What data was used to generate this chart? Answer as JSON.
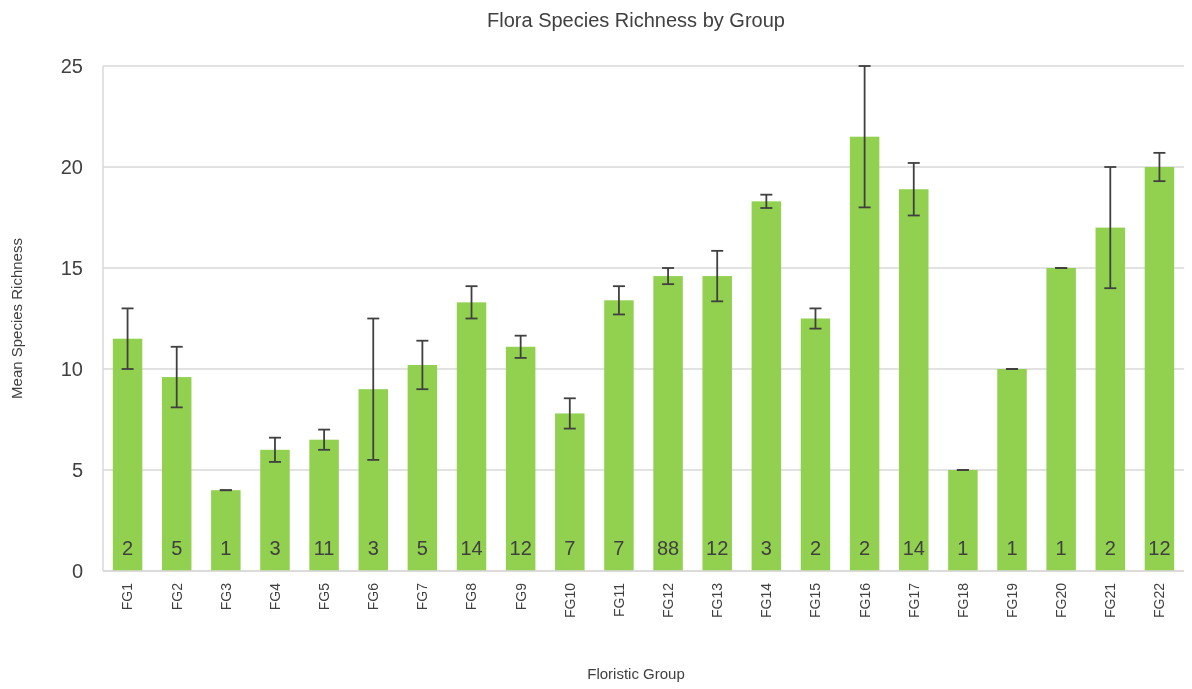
{
  "chart_data": {
    "type": "bar",
    "title": "Flora Species Richness by Group",
    "xlabel": "Floristic Group",
    "ylabel": "Mean Species Richness",
    "categories": [
      "FG1",
      "FG2",
      "FG3",
      "FG4",
      "FG5",
      "FG6",
      "FG7",
      "FG8",
      "FG9",
      "FG10",
      "FG11",
      "FG12",
      "FG13",
      "FG14",
      "FG15",
      "FG16",
      "FG17",
      "FG18",
      "FG19",
      "FG20",
      "FG21",
      "FG22"
    ],
    "values": [
      11.5,
      9.6,
      4,
      6,
      6.5,
      9,
      10.2,
      13.3,
      11.1,
      7.8,
      13.4,
      14.6,
      14.6,
      18.3,
      12.5,
      21.5,
      18.9,
      5,
      10,
      15,
      17,
      20
    ],
    "errors": [
      1.5,
      1.5,
      0,
      0.6,
      0.5,
      3.5,
      1.2,
      0.8,
      0.55,
      0.75,
      0.7,
      0.4,
      1.25,
      0.33,
      0.5,
      3.5,
      1.3,
      0,
      0,
      0,
      3,
      0.7
    ],
    "annotations": [
      "2",
      "5",
      "1",
      "3",
      "11",
      "3",
      "5",
      "14",
      "12",
      "7",
      "7",
      "88",
      "12",
      "3",
      "2",
      "2",
      "14",
      "1",
      "1",
      "1",
      "2",
      "12"
    ],
    "color": "#92d050",
    "ylim": [
      0,
      25
    ],
    "yticks": [
      0,
      5,
      10,
      15,
      20,
      25
    ],
    "grid": "y"
  }
}
